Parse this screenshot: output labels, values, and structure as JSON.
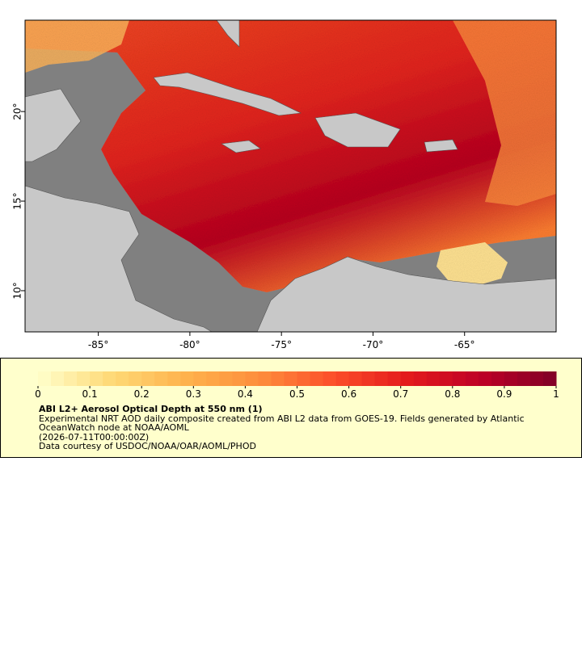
{
  "map": {
    "xlim": [
      -89,
      -60
    ],
    "ylim": [
      7.7,
      25.1
    ],
    "xticks": [
      {
        "value": -85,
        "label": "-85°"
      },
      {
        "value": -80,
        "label": "-80°"
      },
      {
        "value": -75,
        "label": "-75°"
      },
      {
        "value": -70,
        "label": "-70°"
      },
      {
        "value": -65,
        "label": "-65°"
      }
    ],
    "yticks": [
      {
        "value": 10,
        "label": "10°"
      },
      {
        "value": 15,
        "label": "15°"
      },
      {
        "value": 20,
        "label": "20°"
      }
    ]
  },
  "legend": {
    "colorbar": {
      "range": [
        0,
        1
      ],
      "ticks": [
        0,
        0.1,
        0.2,
        0.3,
        0.4,
        0.5,
        0.6,
        0.7,
        0.8,
        0.9,
        1
      ]
    },
    "title": "ABI L2+ Aerosol Optical Depth at 550 nm (1)",
    "description": "Experimental NRT AOD daily composite created from ABI L2 data from GOES-19. Fields generated by Atlantic OceanWatch node at NOAA/AOML",
    "time": "(2026-07-11T00:00:00Z)",
    "credit": "Data courtesy of USDOC/NOAA/OAR/AOML/PHOD"
  }
}
